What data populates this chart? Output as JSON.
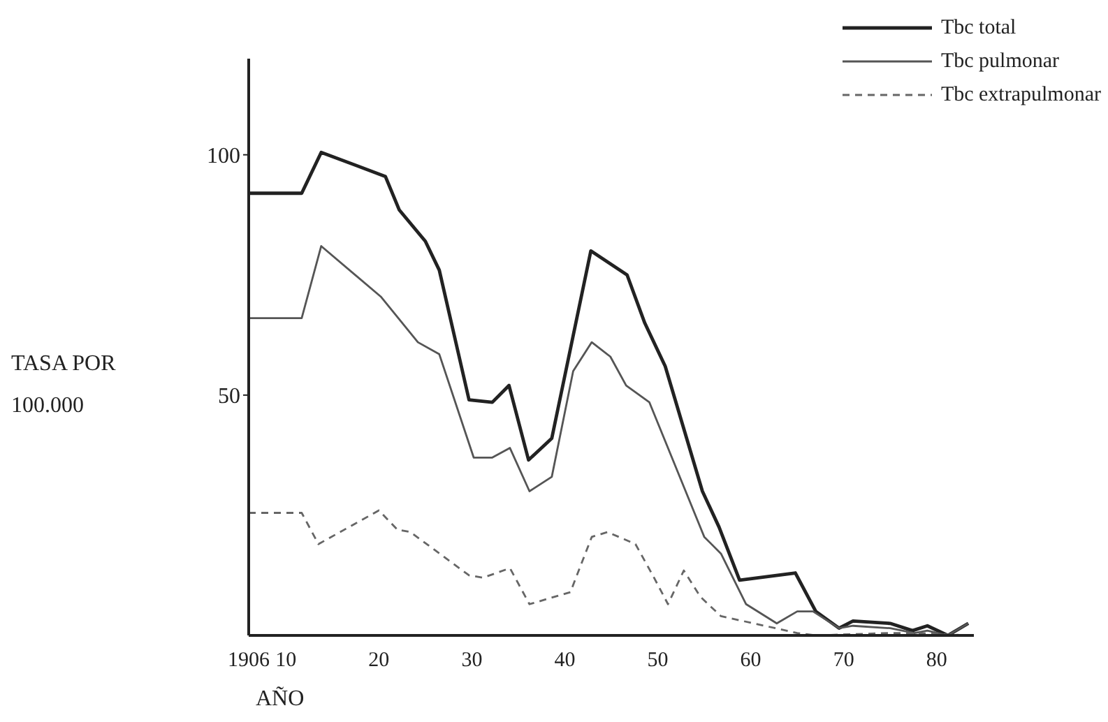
{
  "chart_data": {
    "type": "line",
    "xlabel": "AÑO",
    "ylabel": "TASA POR 100.000",
    "xlim": [
      1906,
      1984
    ],
    "ylim": [
      0,
      120
    ],
    "xticks": [
      {
        "value": 1906,
        "label": "1906"
      },
      {
        "value": 1910,
        "label": "10"
      },
      {
        "value": 1920,
        "label": "20"
      },
      {
        "value": 1930,
        "label": "30"
      },
      {
        "value": 1940,
        "label": "40"
      },
      {
        "value": 1950,
        "label": "50"
      },
      {
        "value": 1960,
        "label": "60"
      },
      {
        "value": 1970,
        "label": "70"
      },
      {
        "value": 1980,
        "label": "80"
      }
    ],
    "yticks": [
      50,
      100
    ],
    "grid": false,
    "legend": "top right",
    "marker": "none",
    "series": [
      {
        "name": "Tbc total",
        "color": "#222222",
        "line_style": "solid",
        "x": [
          1906,
          1911.7,
          1913.8,
          1920.7,
          1922.2,
          1925,
          1926.5,
          1929.7,
          1932.2,
          1934,
          1936.1,
          1938.6,
          1942.8,
          1946.7,
          1948.6,
          1950.8,
          1954.8,
          1956.6,
          1958.8,
          1964.8,
          1967,
          1969.5,
          1971,
          1975,
          1977.4,
          1979,
          1981.2,
          1983.4
        ],
        "values": [
          92,
          92,
          100.5,
          95.5,
          88.5,
          82,
          76,
          49,
          48.5,
          52,
          36.5,
          41,
          80,
          75,
          65,
          56,
          30,
          22.5,
          11.5,
          13,
          5,
          1.5,
          3,
          2.5,
          1,
          2,
          0,
          2.5
        ]
      },
      {
        "name": "Tbc pulmonar",
        "color": "#555555",
        "line_style": "solid",
        "x": [
          1906,
          1911.7,
          1913.8,
          1920.2,
          1924.2,
          1926.5,
          1930.2,
          1932.2,
          1934.1,
          1936.2,
          1938.6,
          1940.9,
          1942.9,
          1944.9,
          1946.6,
          1949.1,
          1955,
          1956.8,
          1959.5,
          1962.8,
          1965,
          1966.7,
          1969.5,
          1971,
          1975,
          1977.6,
          1979,
          1981.2,
          1983.4
        ],
        "values": [
          66,
          66,
          81,
          70.5,
          61,
          58.5,
          37,
          37,
          39,
          30,
          33,
          55,
          61,
          58,
          52,
          48.5,
          20.5,
          17,
          6.5,
          2.5,
          5,
          5,
          1.5,
          2,
          1.5,
          0.5,
          1,
          0,
          2.5
        ]
      },
      {
        "name": "Tbc extrapulmonar",
        "color": "#666666",
        "line_style": "dashed",
        "x": [
          1906,
          1911.7,
          1913.5,
          1920,
          1922,
          1923.4,
          1929.7,
          1931.2,
          1934.1,
          1936.2,
          1940.6,
          1942.9,
          1944.6,
          1947.6,
          1949.6,
          1951.1,
          1952.8,
          1954.6,
          1956.8,
          1961.5,
          1965,
          1967,
          1975,
          1978,
          1983.4
        ],
        "values": [
          25.5,
          25.5,
          19,
          26,
          22,
          21.5,
          12.5,
          12,
          14,
          6.5,
          9,
          20.5,
          21.5,
          19,
          12,
          6.5,
          13.5,
          8,
          4,
          2,
          0.5,
          0,
          0.5,
          0.5,
          0
        ]
      }
    ]
  }
}
